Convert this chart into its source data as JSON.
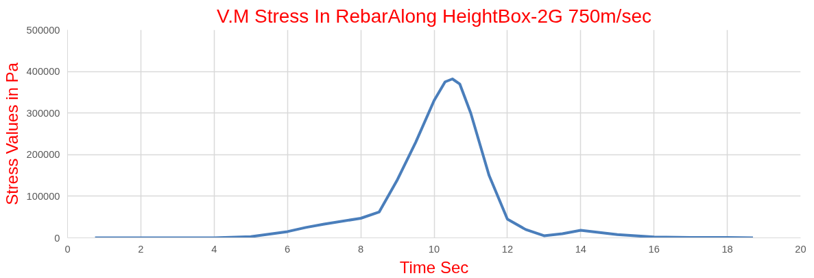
{
  "chart_data": {
    "type": "line",
    "title": "V.M Stress In RebarAlong HeightBox-2G 750m/sec",
    "xlabel": "Time Sec",
    "ylabel": "Stress Values in Pa",
    "x": [
      0.75,
      2,
      4,
      5,
      6,
      6.5,
      7,
      8,
      8.5,
      9,
      9.5,
      10,
      10.3,
      10.5,
      10.7,
      11,
      11.5,
      12,
      12.5,
      13,
      13.5,
      14,
      15,
      16,
      17,
      18,
      18.7
    ],
    "series": [
      {
        "color": "#4a7ebb",
        "values": [
          0,
          0,
          0,
          3000,
          15000,
          25000,
          33000,
          47000,
          62000,
          140000,
          230000,
          330000,
          375000,
          382000,
          370000,
          300000,
          150000,
          45000,
          20000,
          5000,
          10000,
          18000,
          8000,
          2000,
          1000,
          1000,
          0
        ]
      }
    ],
    "xlim": [
      0,
      20
    ],
    "xticks": [
      0,
      2,
      4,
      6,
      8,
      10,
      12,
      14,
      16,
      18,
      20
    ],
    "ylim": [
      0,
      500000
    ],
    "yticks": [
      0,
      100000,
      200000,
      300000,
      400000,
      500000
    ],
    "grid": true,
    "marker": "none",
    "line_style": "solid"
  }
}
